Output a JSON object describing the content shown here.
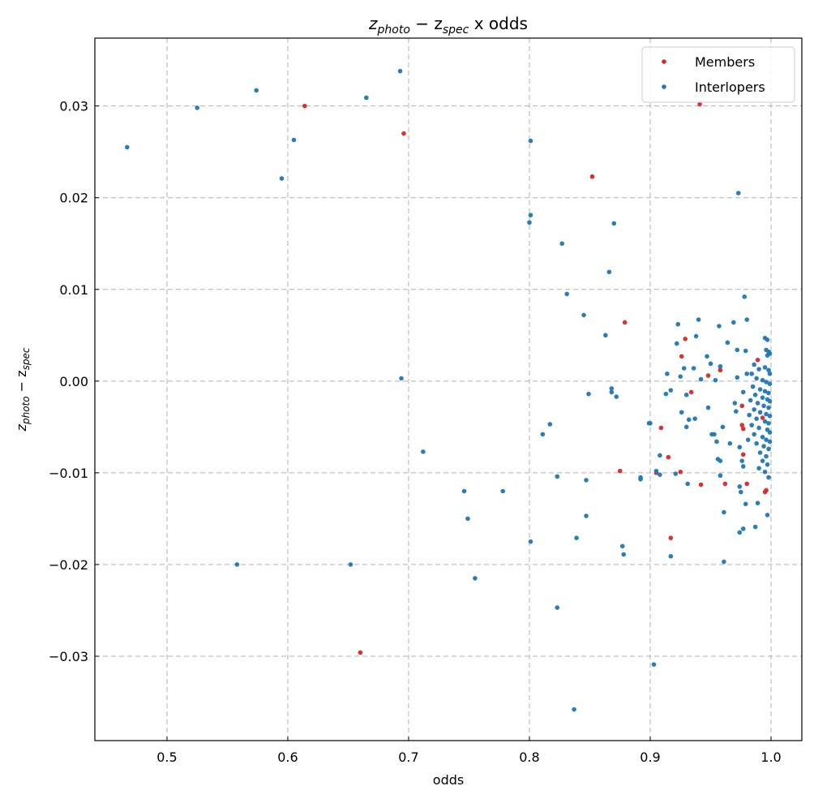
{
  "chart_data": {
    "type": "scatter",
    "title_main": "z",
    "title_sub1": "photo",
    "title_mid": " − z",
    "title_sub2": "spec",
    "title_tail": " x odds",
    "xlabel": "odds",
    "ylabel_main": "z",
    "ylabel_sub1": "photo",
    "ylabel_mid": " − z",
    "ylabel_sub2": "spec",
    "xlim": [
      0.4403,
      1.0255
    ],
    "ylim": [
      -0.0392,
      0.0374
    ],
    "xticks": [
      0.5,
      0.6,
      0.7,
      0.8,
      0.9,
      1.0
    ],
    "xtick_labels": [
      "0.5",
      "0.6",
      "0.7",
      "0.8",
      "0.9",
      "1.0"
    ],
    "yticks": [
      -0.03,
      -0.02,
      -0.01,
      0.0,
      0.01,
      0.02,
      0.03
    ],
    "ytick_labels": [
      "−0.03",
      "−0.02",
      "−0.01",
      "0.00",
      "0.01",
      "0.02",
      "0.03"
    ],
    "grid": true,
    "legend": "top-right",
    "series": [
      {
        "name": "Members",
        "color": "#d62728",
        "points": [
          [
            0.614,
            0.03
          ],
          [
            0.696,
            0.027
          ],
          [
            0.852,
            0.0223
          ],
          [
            0.941,
            0.0302
          ],
          [
            0.879,
            0.0064
          ],
          [
            0.929,
            0.0046
          ],
          [
            0.926,
            0.0027
          ],
          [
            0.934,
            -0.0012
          ],
          [
            0.989,
            0.0023
          ],
          [
            0.948,
            0.0006
          ],
          [
            0.958,
            0.0012
          ],
          [
            0.976,
            -0.0027
          ],
          [
            0.993,
            -0.004
          ],
          [
            0.909,
            -0.0051
          ],
          [
            0.976,
            -0.0048
          ],
          [
            0.977,
            -0.0052
          ],
          [
            0.915,
            -0.0083
          ],
          [
            0.977,
            -0.008
          ],
          [
            0.925,
            -0.0099
          ],
          [
            0.905,
            -0.01
          ],
          [
            0.942,
            -0.0113
          ],
          [
            0.962,
            -0.0112
          ],
          [
            0.98,
            -0.0112
          ],
          [
            0.995,
            -0.0121
          ],
          [
            0.996,
            -0.0119
          ],
          [
            0.917,
            -0.0171
          ],
          [
            0.875,
            -0.0098
          ],
          [
            0.66,
            -0.0296
          ]
        ]
      },
      {
        "name": "Interlopers",
        "color": "#1f77b4",
        "points": [
          [
            0.467,
            0.0255
          ],
          [
            0.525,
            0.0298
          ],
          [
            0.574,
            0.0317
          ],
          [
            0.605,
            0.0263
          ],
          [
            0.595,
            0.0221
          ],
          [
            0.665,
            0.0309
          ],
          [
            0.693,
            0.0338
          ],
          [
            0.801,
            0.0262
          ],
          [
            0.801,
            0.0181
          ],
          [
            0.8,
            0.0173
          ],
          [
            0.827,
            0.015
          ],
          [
            0.87,
            0.0172
          ],
          [
            0.866,
            0.0119
          ],
          [
            0.831,
            0.0095
          ],
          [
            0.845,
            0.0072
          ],
          [
            0.863,
            0.005
          ],
          [
            0.973,
            0.0205
          ],
          [
            0.978,
            0.0092
          ],
          [
            0.694,
            0.0003
          ],
          [
            0.712,
            -0.0077
          ],
          [
            0.746,
            -0.012
          ],
          [
            0.749,
            -0.015
          ],
          [
            0.778,
            -0.012
          ],
          [
            0.558,
            -0.02
          ],
          [
            0.652,
            -0.02
          ],
          [
            0.755,
            -0.0215
          ],
          [
            0.801,
            -0.0175
          ],
          [
            0.823,
            -0.0247
          ],
          [
            0.811,
            -0.0058
          ],
          [
            0.817,
            -0.0047
          ],
          [
            0.823,
            -0.0104
          ],
          [
            0.847,
            -0.0108
          ],
          [
            0.847,
            -0.0147
          ],
          [
            0.839,
            -0.0171
          ],
          [
            0.837,
            -0.0358
          ],
          [
            0.903,
            -0.0309
          ],
          [
            0.877,
            -0.018
          ],
          [
            0.878,
            -0.0189
          ],
          [
            0.917,
            -0.0191
          ],
          [
            0.899,
            -0.0046
          ],
          [
            0.849,
            -0.0014
          ],
          [
            0.868,
            -0.0008
          ],
          [
            0.868,
            -0.0012
          ],
          [
            0.872,
            -0.0017
          ],
          [
            0.892,
            -0.0105
          ],
          [
            0.892,
            -0.0107
          ],
          [
            0.923,
            0.0062
          ],
          [
            0.94,
            0.0067
          ],
          [
            0.957,
            0.006
          ],
          [
            0.969,
            0.0064
          ],
          [
            0.98,
            0.0067
          ],
          [
            0.938,
            0.0049
          ],
          [
            0.922,
            0.0041
          ],
          [
            0.964,
            0.0042
          ],
          [
            0.995,
            0.0047
          ],
          [
            0.997,
            0.0045
          ],
          [
            0.972,
            0.0034
          ],
          [
            0.979,
            0.0033
          ],
          [
            0.947,
            0.0027
          ],
          [
            0.928,
            0.0014
          ],
          [
            0.936,
            0.0014
          ],
          [
            0.95,
            0.0019
          ],
          [
            0.958,
            0.0016
          ],
          [
            0.914,
            0.0008
          ],
          [
            0.925,
            0.0005
          ],
          [
            0.942,
            0.0002
          ],
          [
            0.954,
            0.0001
          ],
          [
            0.972,
            0.0004
          ],
          [
            0.98,
            0.0008
          ],
          [
            0.917,
            -0.001
          ],
          [
            0.913,
            -0.0014
          ],
          [
            0.93,
            -0.0015
          ],
          [
            0.977,
            -0.0012
          ],
          [
            0.926,
            -0.0034
          ],
          [
            0.948,
            -0.0029
          ],
          [
            0.97,
            -0.0024
          ],
          [
            0.971,
            -0.0033
          ],
          [
            0.932,
            -0.0042
          ],
          [
            0.937,
            -0.0041
          ],
          [
            0.93,
            -0.005
          ],
          [
            0.96,
            -0.005
          ],
          [
            0.9,
            -0.0046
          ],
          [
            0.951,
            -0.0058
          ],
          [
            0.953,
            -0.0058
          ],
          [
            0.955,
            -0.0066
          ],
          [
            0.966,
            -0.0068
          ],
          [
            0.974,
            -0.0072
          ],
          [
            0.908,
            -0.0081
          ],
          [
            0.956,
            -0.0085
          ],
          [
            0.958,
            -0.0087
          ],
          [
            0.976,
            -0.0087
          ],
          [
            0.977,
            -0.0093
          ],
          [
            0.905,
            -0.0098
          ],
          [
            0.908,
            -0.0102
          ],
          [
            0.921,
            -0.0101
          ],
          [
            0.958,
            -0.0103
          ],
          [
            0.931,
            -0.0112
          ],
          [
            0.974,
            -0.0115
          ],
          [
            0.975,
            -0.0121
          ],
          [
            0.979,
            -0.0134
          ],
          [
            0.989,
            -0.0133
          ],
          [
            0.961,
            -0.0143
          ],
          [
            0.997,
            -0.0146
          ],
          [
            0.987,
            -0.0159
          ],
          [
            0.977,
            -0.0161
          ],
          [
            0.974,
            -0.0165
          ],
          [
            0.961,
            -0.0197
          ],
          [
            0.996,
            0.0034
          ],
          [
            0.998,
            0.0032
          ],
          [
            0.997,
            0.0028
          ],
          [
            0.999,
            0.003
          ],
          [
            0.986,
            0.0018
          ],
          [
            0.99,
            0.0013
          ],
          [
            0.995,
            0.0015
          ],
          [
            0.998,
            0.0012
          ],
          [
            0.999,
            0.0008
          ],
          [
            0.984,
            0.0008
          ],
          [
            0.988,
            0.0003
          ],
          [
            0.993,
            0.0001
          ],
          [
            0.996,
            -0.0001
          ],
          [
            0.999,
            -0.0003
          ],
          [
            0.985,
            -0.0006
          ],
          [
            0.991,
            -0.0009
          ],
          [
            0.995,
            -0.0011
          ],
          [
            0.998,
            -0.0013
          ],
          [
            0.987,
            -0.0015
          ],
          [
            0.993,
            -0.0018
          ],
          [
            0.997,
            -0.002
          ],
          [
            0.999,
            -0.0022
          ],
          [
            0.983,
            -0.0021
          ],
          [
            0.989,
            -0.0024
          ],
          [
            0.994,
            -0.0027
          ],
          [
            0.998,
            -0.0029
          ],
          [
            0.986,
            -0.0031
          ],
          [
            0.991,
            -0.0034
          ],
          [
            0.996,
            -0.0036
          ],
          [
            0.999,
            -0.0038
          ],
          [
            0.982,
            -0.0037
          ],
          [
            0.988,
            -0.0041
          ],
          [
            0.995,
            -0.0044
          ],
          [
            0.998,
            -0.0046
          ],
          [
            0.984,
            -0.0048
          ],
          [
            0.99,
            -0.0051
          ],
          [
            0.997,
            -0.0053
          ],
          [
            0.999,
            -0.0056
          ],
          [
            0.986,
            -0.0058
          ],
          [
            0.993,
            -0.0061
          ],
          [
            0.996,
            -0.0064
          ],
          [
            0.999,
            -0.0066
          ],
          [
            0.981,
            -0.0064
          ],
          [
            0.988,
            -0.0068
          ],
          [
            0.994,
            -0.0071
          ],
          [
            0.998,
            -0.0074
          ],
          [
            0.991,
            -0.0078
          ],
          [
            0.996,
            -0.0082
          ],
          [
            0.993,
            -0.0087
          ],
          [
            0.997,
            -0.0091
          ],
          [
            0.99,
            -0.0095
          ],
          [
            0.995,
            -0.0099
          ],
          [
            0.998,
            -0.0105
          ]
        ]
      }
    ]
  }
}
